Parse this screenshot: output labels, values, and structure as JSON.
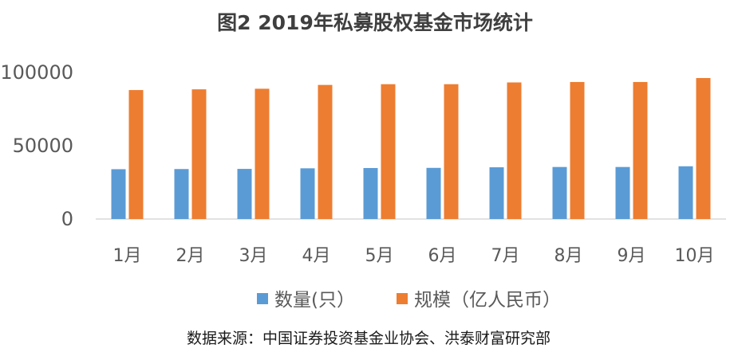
{
  "chart_data": {
    "type": "bar",
    "title": "图2 2019年私募股权基金市场统计",
    "categories": [
      "1月",
      "2月",
      "3月",
      "4月",
      "5月",
      "6月",
      "7月",
      "8月",
      "9月",
      "10月"
    ],
    "series": [
      {
        "name": "数量(只）",
        "color": "#5b9bd5",
        "values": [
          34000,
          34100,
          34200,
          34600,
          34800,
          34900,
          35300,
          35500,
          35500,
          36000
        ]
      },
      {
        "name": "规模（亿人民币）",
        "color": "#ed7d31",
        "values": [
          88000,
          88500,
          88900,
          91500,
          92000,
          92000,
          93200,
          93500,
          93500,
          96200
        ]
      }
    ],
    "yticks": [
      "0",
      "50000",
      "100000"
    ],
    "ylim": [
      0,
      100000
    ],
    "xlabel": "",
    "ylabel": "",
    "grid": false,
    "legend": "bottom"
  },
  "source": "数据来源：中国证券投资基金业协会、洪泰财富研究部"
}
